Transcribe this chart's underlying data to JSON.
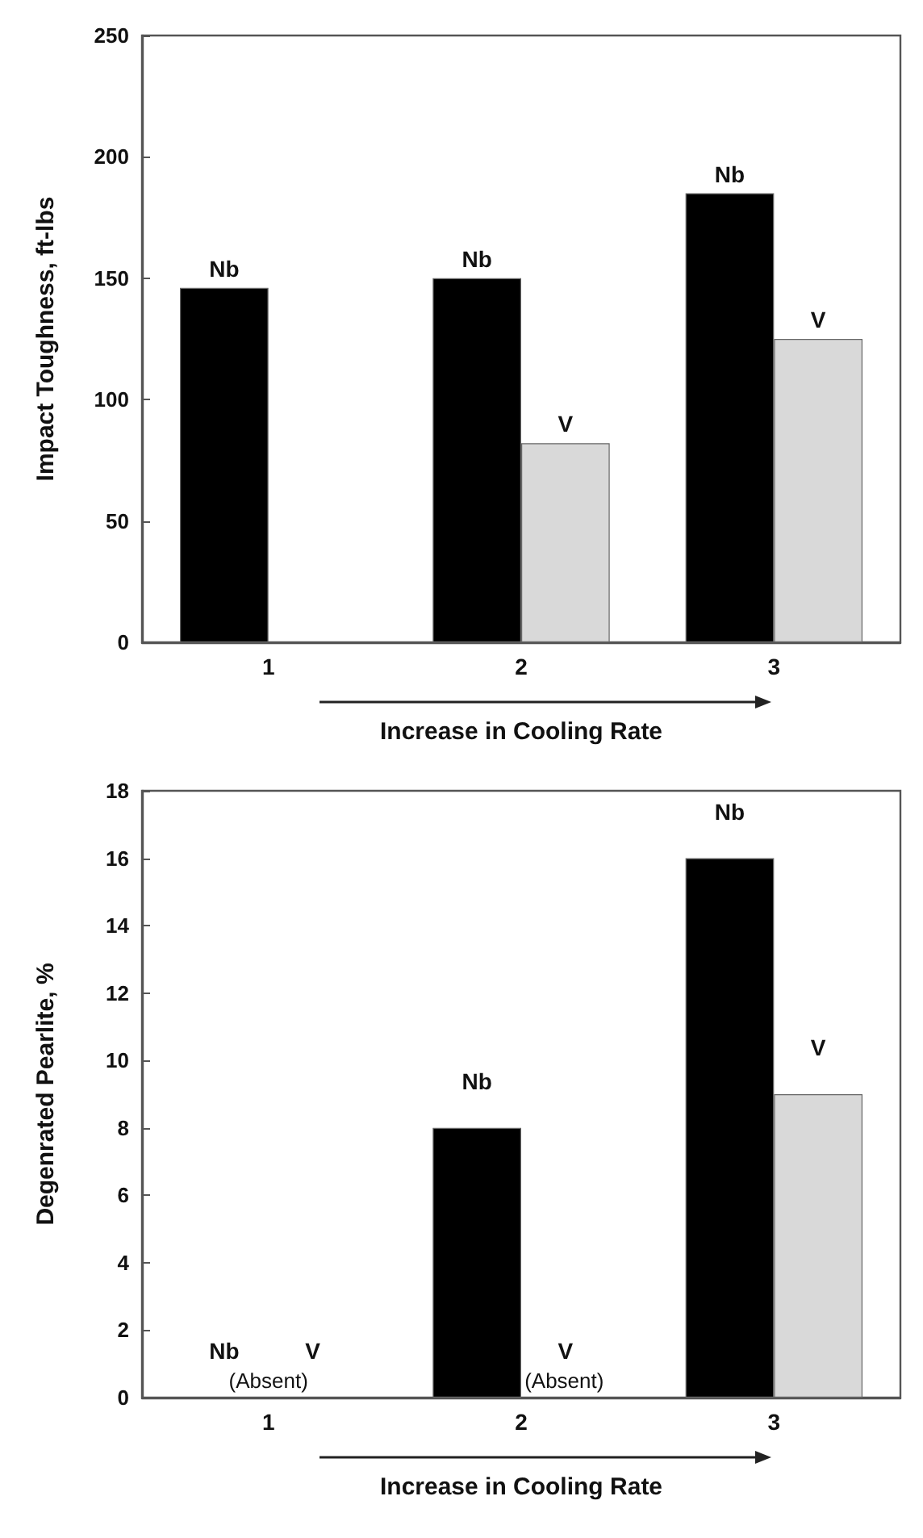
{
  "chart_data": [
    {
      "type": "bar",
      "ylabel": "Impact Toughness, ft-lbs",
      "xlabel": "Increase in Cooling Rate",
      "categories": [
        "1",
        "2",
        "3"
      ],
      "series": [
        {
          "name": "Nb",
          "color": "#000000",
          "values": [
            146,
            150,
            185
          ]
        },
        {
          "name": "V",
          "color": "#d9d9d9",
          "values": [
            null,
            82,
            125
          ]
        }
      ],
      "ylim": [
        0,
        250
      ],
      "yticks": [
        0,
        50,
        100,
        150,
        200,
        250
      ],
      "grid": false,
      "legend": false
    },
    {
      "type": "bar",
      "ylabel": "Degenrated Pearlite, %",
      "xlabel": "Increase in Cooling Rate",
      "categories": [
        "1",
        "2",
        "3"
      ],
      "series": [
        {
          "name": "Nb",
          "color": "#000000",
          "values": [
            0,
            8,
            16
          ]
        },
        {
          "name": "V",
          "color": "#d9d9d9",
          "values": [
            0,
            0,
            9
          ]
        }
      ],
      "annotations": [
        {
          "text": "(Absent)",
          "x": "1",
          "y": 0
        },
        {
          "text": "(Absent)",
          "x": "2",
          "y": 0
        }
      ],
      "ylim": [
        0,
        18
      ],
      "yticks": [
        0,
        2,
        4,
        6,
        8,
        10,
        12,
        14,
        16,
        18
      ],
      "grid": false,
      "legend": false
    }
  ]
}
